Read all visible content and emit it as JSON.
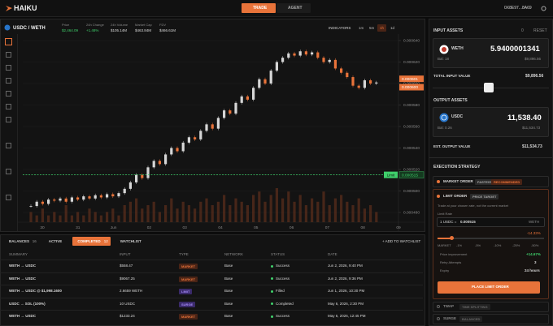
{
  "header": {
    "logo": "HAIKU",
    "tabs": [
      "TRADE",
      "AGENT"
    ],
    "active_tab": 0,
    "wallet": "0X8E97...8A69"
  },
  "pair": {
    "name": "USDC / WETH",
    "stats": [
      {
        "label": "Price",
        "value": "$2,464.09"
      },
      {
        "label": "24h Change",
        "value": "+1.48%"
      },
      {
        "label": "24h Volume",
        "value": "$105.14M"
      },
      {
        "label": "Market Cap",
        "value": "$463.84M"
      },
      {
        "label": "FDV",
        "value": "$466.61M"
      }
    ]
  },
  "toolbar": {
    "indicators": "INDICATORS",
    "intervals": [
      "1m",
      "5m",
      "1h",
      "1d"
    ],
    "active_interval": 2
  },
  "chart": {
    "type": "candlestick",
    "closes": [
      0.000486,
      0.00049,
      0.000488,
      0.000492,
      0.000491,
      0.000493,
      0.00049,
      0.000494,
      0.000492,
      0.000495,
      0.000493,
      0.000496,
      0.000494,
      0.000497,
      0.000495,
      0.000498,
      0.000502,
      0.000508,
      0.000515,
      0.000512,
      0.000522,
      0.000528,
      0.000525,
      0.000534,
      0.00054,
      0.000537,
      0.000545,
      0.00055,
      0.000548,
      0.000556,
      0.000562,
      0.000558,
      0.000568,
      0.000575,
      0.000572,
      0.000582,
      0.000588,
      0.000585,
      0.000596,
      0.000604,
      0.0006,
      0.000612,
      0.00062,
      0.000624,
      0.000628,
      0.000626,
      0.00063,
      0.000627,
      0.000629,
      0.000624,
      0.00062,
      0.000622,
      0.000614,
      0.00061,
      0.000606,
      0.000598,
      0.000596,
      0.000603,
      0.0006,
      0.000601
    ],
    "volumes": [
      3,
      2,
      4,
      2,
      3,
      2,
      5,
      2,
      3,
      2,
      4,
      3,
      2,
      3,
      4,
      2,
      5,
      6,
      7,
      4,
      5,
      6,
      3,
      5,
      7,
      4,
      6,
      5,
      4,
      6,
      7,
      5,
      6,
      8,
      5,
      7,
      6,
      5,
      8,
      9,
      6,
      8,
      10,
      7,
      9,
      6,
      8,
      5,
      7,
      6,
      9,
      5,
      7,
      8,
      6,
      5,
      7,
      4,
      5,
      3
    ],
    "x_labels": [
      "30",
      "31",
      "Jun",
      "02",
      "03",
      "04",
      "05",
      "06",
      "07",
      "08",
      "09"
    ],
    "ylim": [
      0.00048,
      0.00064
    ],
    "yticks": [
      {
        "value": 0.00048,
        "label": "0.000480"
      },
      {
        "value": 0.0005,
        "label": "0.000500"
      },
      {
        "value": 0.00052,
        "label": "0.000520"
      },
      {
        "value": 0.00054,
        "label": "0.000540"
      },
      {
        "value": 0.00056,
        "label": "0.000560"
      },
      {
        "value": 0.00058,
        "label": "0.000580"
      },
      {
        "value": 0.0006,
        "label": "0.000600"
      },
      {
        "value": 0.00062,
        "label": "0.000620"
      },
      {
        "value": 0.00064,
        "label": "0.000640"
      }
    ],
    "limit": {
      "label": "Limit",
      "price": 0.000515
    },
    "price_tags": [
      0.000601,
      {
        "value": 0.0006,
        "label": "0.000600"
      }
    ]
  },
  "input": {
    "title": "INPUT ASSETS",
    "count": "0",
    "reset": "RESET",
    "asset": "WETH",
    "amount": "5.9400001341",
    "balance": "Bal: 18",
    "usd": "$9,896.56",
    "total_label": "TOTAL INPUT VALUE",
    "total": "$9,896.56"
  },
  "output": {
    "title": "OUTPUT ASSETS",
    "asset": "USDC",
    "amount": "11,538.40",
    "balance": "Bal: 0.26",
    "usd": "$11,534.73",
    "total_label": "EST. OUTPUT VALUE",
    "total": "$11,534.73"
  },
  "strategy": {
    "title": "EXECUTION STRATEGY",
    "market": {
      "label": "MARKET ORDER",
      "badges": [
        "FASTEST",
        "RECOMMENDED"
      ]
    },
    "limit": {
      "label": "LIMIT ORDER",
      "badge": "PRICE TARGET",
      "description": "Trade at your chosen rate, not the current market",
      "rate_label": "Limit Rate",
      "base": "1 USDC =",
      "rate": "0.000515",
      "quote": "WETH",
      "delta": "-14.33%",
      "presets": [
        "MARKET",
        "-1%",
        "-5%",
        "-10%",
        "-25%",
        "-50%"
      ],
      "details": [
        [
          "Price improvement",
          "+14.67%"
        ],
        [
          "Retry Attempts",
          "3"
        ],
        [
          "Expiry",
          "24 hours"
        ]
      ],
      "button": "PLACE LIMIT ORDER"
    },
    "others": [
      [
        "TWAP",
        "TIME SPLITTING"
      ],
      [
        "SURGE",
        "BALANCED"
      ]
    ]
  },
  "orders": {
    "tabs": [
      {
        "label": "BALANCES",
        "count": "16"
      },
      {
        "label": "ACTIVE"
      },
      {
        "label": "COMPLETED",
        "count": "12"
      },
      {
        "label": "WATCHLIST"
      }
    ],
    "active_tab": 2,
    "add": "+ ADD TO WATCHLIST",
    "columns": [
      "SUMMARY",
      "INPUT",
      "TYPE",
      "NETWORK",
      "STATUS",
      "DATE"
    ],
    "rows": [
      [
        "WETH → USDC",
        "$558.47",
        "MARKET",
        "Base",
        "Success",
        "Jun 2, 2026, 9:40 PM"
      ],
      [
        "WETH → USDC",
        "$9067.25",
        "MARKET",
        "Base",
        "Success",
        "Jun 2, 2026, 9:36 PM"
      ],
      [
        "WETH → USDC @ $1,998.1600",
        "2.6659 WETH",
        "LIMIT",
        "Base",
        "Filled",
        "Jun 1, 2026, 10:30 PM"
      ],
      [
        "USDC → SOL (100%)",
        "10 USDC",
        "SURGE",
        "Base",
        "Completed",
        "May 6, 2026, 2:30 PM"
      ],
      [
        "WETH → USDC",
        "$1233.24",
        "MARKET",
        "Base",
        "Success",
        "May 6, 2026, 12:45 PM"
      ]
    ]
  }
}
